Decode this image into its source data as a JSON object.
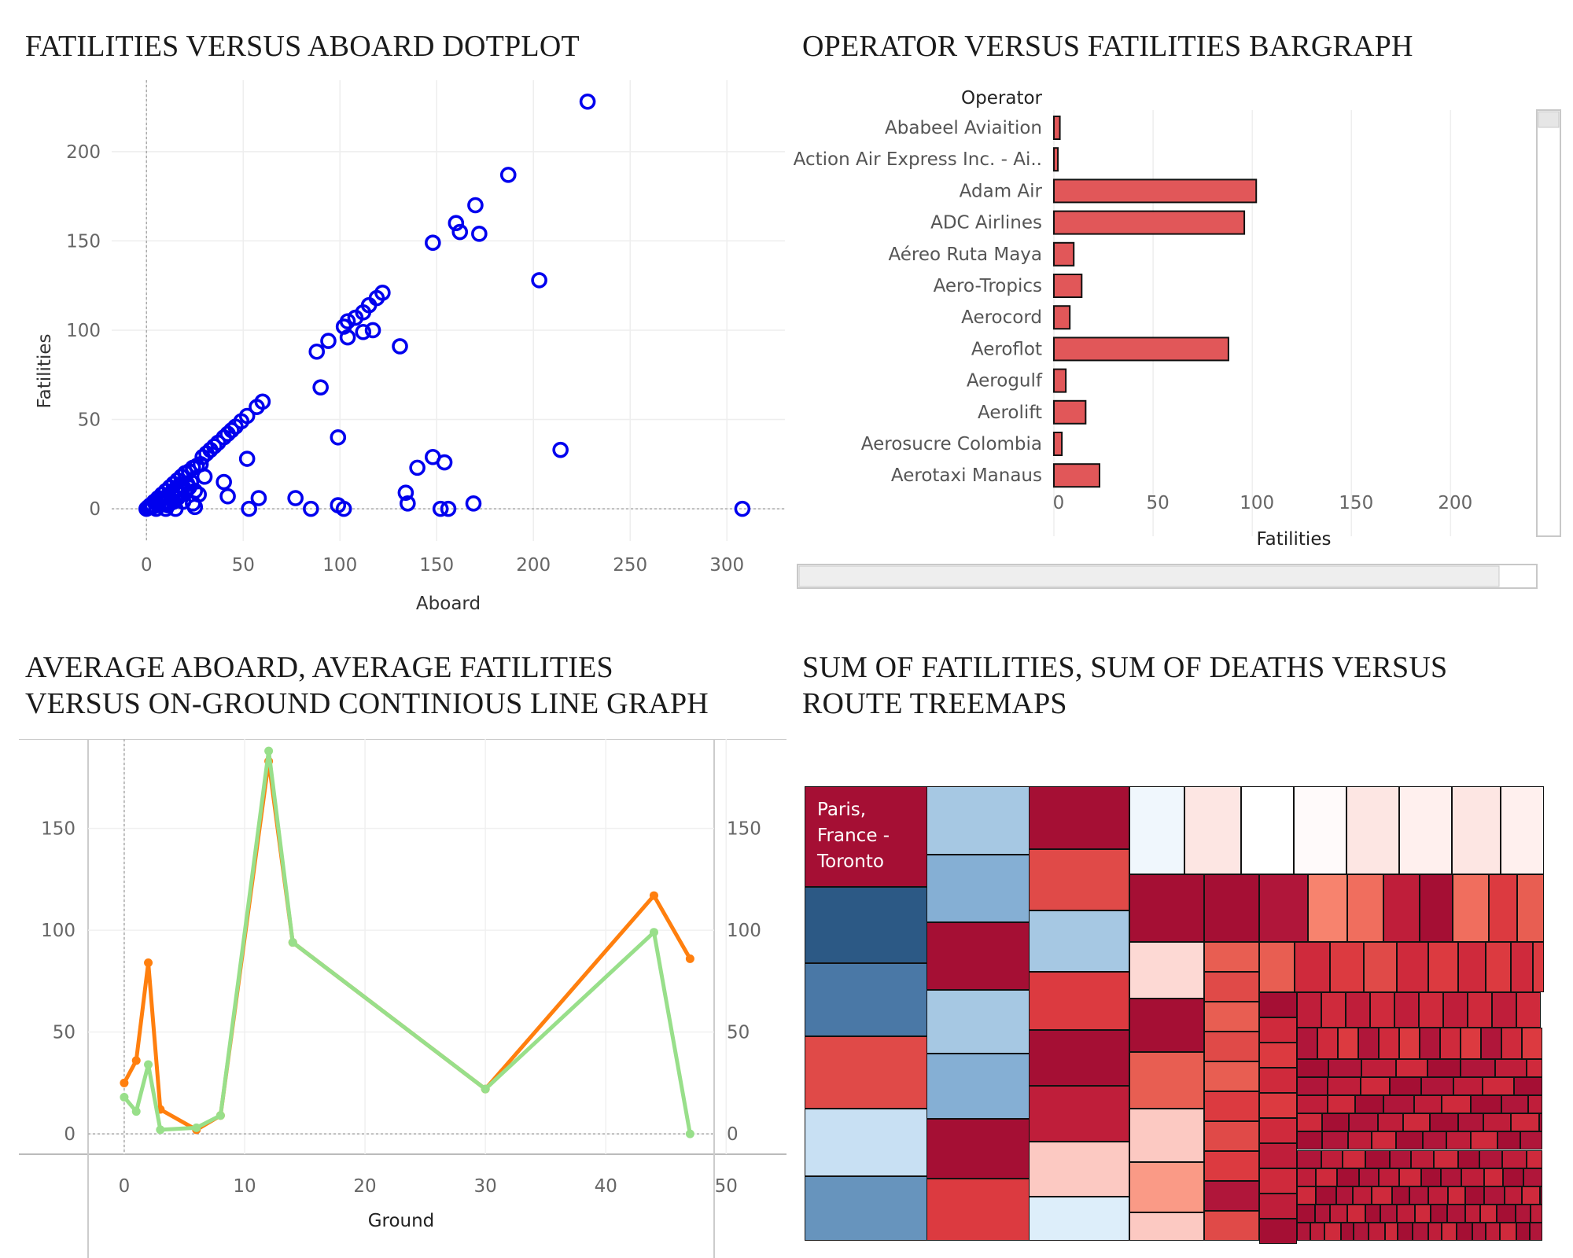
{
  "panels": {
    "scatter_title": "FATILITIES VERSUS ABOARD DOTPLOT",
    "bar_title": "OPERATOR VERSUS FATILITIES BARGRAPH",
    "line_title_1": "AVERAGE ABOARD, AVERAGE FATILITIES",
    "line_title_2": "VERSUS ON-GROUND CONTINIOUS LINE GRAPH",
    "treemap_title_1": "SUM OF FATILITIES, SUM OF DEATHS VERSUS",
    "treemap_title_2": "ROUTE TREEMAPS"
  },
  "colors": {
    "scatter_marker": "#0000ee",
    "bar_fill": "#e15759",
    "line_aboard": "#ff7f0e",
    "line_fatalities": "#98df8a",
    "treemap_red_dark": "#a50f34",
    "treemap_blue_dark": "#2c5985"
  },
  "chart_data": [
    {
      "type": "scatter",
      "xlabel": "Aboard",
      "ylabel": "Fatilities",
      "xlim": [
        -18,
        330
      ],
      "ylim": [
        -18,
        240
      ],
      "xticks": [
        0,
        50,
        100,
        150,
        200,
        250,
        300
      ],
      "yticks": [
        0,
        50,
        100,
        150,
        200
      ],
      "marker": "hollow-circle",
      "grid": true,
      "points": [
        [
          228,
          228
        ],
        [
          187,
          187
        ],
        [
          170,
          170
        ],
        [
          160,
          160
        ],
        [
          162,
          155
        ],
        [
          172,
          154
        ],
        [
          148,
          149
        ],
        [
          203,
          128
        ],
        [
          122,
          121
        ],
        [
          119,
          118
        ],
        [
          115,
          114
        ],
        [
          112,
          110
        ],
        [
          108,
          107
        ],
        [
          104,
          105
        ],
        [
          102,
          102
        ],
        [
          117,
          100
        ],
        [
          112,
          99
        ],
        [
          104,
          96
        ],
        [
          94,
          94
        ],
        [
          131,
          91
        ],
        [
          88,
          88
        ],
        [
          90,
          68
        ],
        [
          60,
          60
        ],
        [
          57,
          57
        ],
        [
          52,
          52
        ],
        [
          49,
          49
        ],
        [
          46,
          46
        ],
        [
          44,
          44
        ],
        [
          42,
          42
        ],
        [
          40,
          40
        ],
        [
          37,
          37
        ],
        [
          35,
          35
        ],
        [
          33,
          33
        ],
        [
          31,
          31
        ],
        [
          29,
          29
        ],
        [
          99,
          40
        ],
        [
          214,
          33
        ],
        [
          148,
          29
        ],
        [
          154,
          26
        ],
        [
          52,
          28
        ],
        [
          140,
          23
        ],
        [
          28,
          25
        ],
        [
          26,
          24
        ],
        [
          24,
          23
        ],
        [
          22,
          21
        ],
        [
          20,
          20
        ],
        [
          18,
          18
        ],
        [
          16,
          16
        ],
        [
          14,
          14
        ],
        [
          12,
          12
        ],
        [
          10,
          10
        ],
        [
          8,
          8
        ],
        [
          6,
          6
        ],
        [
          4,
          4
        ],
        [
          2,
          2
        ],
        [
          0,
          0
        ],
        [
          1,
          1
        ],
        [
          3,
          2
        ],
        [
          5,
          3
        ],
        [
          7,
          5
        ],
        [
          9,
          6
        ],
        [
          11,
          7
        ],
        [
          13,
          9
        ],
        [
          15,
          11
        ],
        [
          17,
          13
        ],
        [
          19,
          12
        ],
        [
          21,
          14
        ],
        [
          23,
          15
        ],
        [
          25,
          10
        ],
        [
          27,
          8
        ],
        [
          30,
          18
        ],
        [
          40,
          15
        ],
        [
          42,
          7
        ],
        [
          58,
          6
        ],
        [
          77,
          6
        ],
        [
          134,
          9
        ],
        [
          135,
          3
        ],
        [
          169,
          3
        ],
        [
          99,
          2
        ],
        [
          25,
          1
        ],
        [
          53,
          0
        ],
        [
          85,
          0
        ],
        [
          102,
          0
        ],
        [
          152,
          0
        ],
        [
          156,
          0
        ],
        [
          308,
          0
        ],
        [
          6,
          2
        ],
        [
          8,
          3
        ],
        [
          10,
          4
        ],
        [
          12,
          3
        ],
        [
          14,
          4
        ],
        [
          16,
          6
        ],
        [
          18,
          8
        ],
        [
          20,
          10
        ],
        [
          22,
          12
        ],
        [
          24,
          3
        ],
        [
          15,
          0
        ],
        [
          10,
          0
        ],
        [
          5,
          0
        ],
        [
          3,
          1
        ],
        [
          11,
          2
        ],
        [
          13,
          5
        ],
        [
          17,
          9
        ],
        [
          19,
          4
        ]
      ]
    },
    {
      "type": "bar",
      "orientation": "horizontal",
      "category_header": "Operator",
      "xlabel": "Fatilities",
      "xlim": [
        0,
        230
      ],
      "xticks": [
        0,
        50,
        100,
        150,
        200
      ],
      "categories": [
        "Ababeel Aviaition",
        "Action Air Express Inc. - Ai..",
        "Adam Air",
        "ADC Airlines",
        "Aéreo Ruta Maya",
        "Aero-Tropics",
        "Aerocord",
        "Aeroflot",
        "Aerogulf",
        "Aerolift",
        "Aerosucre Colombia",
        "Aerotaxi Manaus"
      ],
      "values": [
        3,
        2,
        102,
        96,
        10,
        14,
        8,
        88,
        6,
        16,
        4,
        23
      ]
    },
    {
      "type": "line",
      "xlabel": "Ground",
      "ylabel": "",
      "xlim": [
        -3,
        49
      ],
      "ylim": [
        -10,
        190
      ],
      "xticks": [
        0,
        10,
        20,
        30,
        40,
        50
      ],
      "yticks": [
        0,
        50,
        100,
        150
      ],
      "dual_axis": true,
      "series": [
        {
          "key": "aboard",
          "x": [
            0,
            1,
            2,
            3,
            6,
            8,
            12,
            14,
            30,
            44,
            47
          ],
          "values": [
            25,
            36,
            84,
            12,
            2,
            9,
            183,
            94,
            22,
            117,
            86
          ]
        },
        {
          "key": "fatalities",
          "x": [
            0,
            1,
            2,
            3,
            6,
            8,
            12,
            14,
            30,
            44,
            47
          ],
          "values": [
            18,
            11,
            34,
            2,
            3,
            9,
            188,
            94,
            22,
            99,
            0
          ]
        }
      ]
    },
    {
      "type": "treemap",
      "labels": [
        "Paris, France - Toronto"
      ]
    }
  ]
}
